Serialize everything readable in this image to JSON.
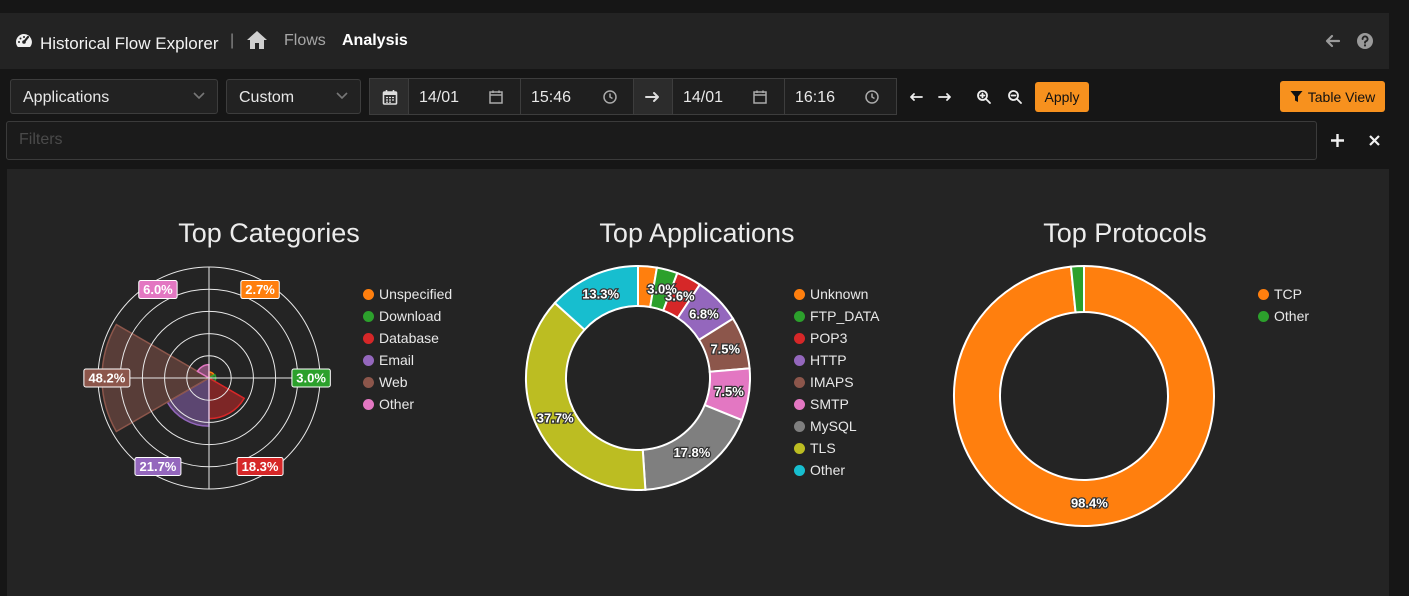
{
  "header": {
    "app_title": "Historical Flow Explorer",
    "separator": "|",
    "breadcrumbs": [
      {
        "label": "Flows"
      },
      {
        "label": "Analysis"
      }
    ]
  },
  "toolbar": {
    "view_select": "Applications",
    "range_select": "Custom",
    "start_date": "14/01",
    "start_time": "15:46",
    "end_date": "14/01",
    "end_time": "16:16",
    "apply_label": "Apply",
    "table_view_label": "Table View"
  },
  "filters": {
    "placeholder": "Filters"
  },
  "charts": {
    "categories": {
      "title": "Top Categories",
      "legend": [
        {
          "name": "Unspecified",
          "color": "#ff7f0e"
        },
        {
          "name": "Download",
          "color": "#2ca02c"
        },
        {
          "name": "Database",
          "color": "#d62728"
        },
        {
          "name": "Email",
          "color": "#9467bd"
        },
        {
          "name": "Web",
          "color": "#8c564b"
        },
        {
          "name": "Other",
          "color": "#e377c2"
        }
      ]
    },
    "applications": {
      "title": "Top Applications",
      "legend": [
        {
          "name": "Unknown",
          "color": "#ff7f0e"
        },
        {
          "name": "FTP_DATA",
          "color": "#2ca02c"
        },
        {
          "name": "POP3",
          "color": "#d62728"
        },
        {
          "name": "HTTP",
          "color": "#9467bd"
        },
        {
          "name": "IMAPS",
          "color": "#8c564b"
        },
        {
          "name": "SMTP",
          "color": "#e377c2"
        },
        {
          "name": "MySQL",
          "color": "#7f7f7f"
        },
        {
          "name": "TLS",
          "color": "#bcbd22"
        },
        {
          "name": "Other",
          "color": "#17becf"
        }
      ]
    },
    "protocols": {
      "title": "Top Protocols",
      "legend": [
        {
          "name": "TCP",
          "color": "#ff7f0e"
        },
        {
          "name": "Other",
          "color": "#2ca02c"
        }
      ]
    }
  },
  "chart_data": [
    {
      "type": "polar-area",
      "title": "Top Categories",
      "categories": [
        "Unspecified",
        "Download",
        "Database",
        "Email",
        "Web",
        "Other"
      ],
      "values": [
        2.7,
        3.0,
        18.3,
        21.7,
        48.2,
        6.0
      ],
      "labels": [
        "2.7%",
        "3.0%",
        "18.3%",
        "21.7%",
        "48.2%",
        "6.0%"
      ],
      "colors": [
        "#ff7f0e",
        "#2ca02c",
        "#d62728",
        "#9467bd",
        "#8c564b",
        "#e377c2"
      ]
    },
    {
      "type": "pie",
      "title": "Top Applications",
      "categories": [
        "Unknown",
        "FTP_DATA",
        "POP3",
        "HTTP",
        "IMAPS",
        "SMTP",
        "MySQL",
        "TLS",
        "Other"
      ],
      "values": [
        2.7,
        3.0,
        3.6,
        6.8,
        7.5,
        7.5,
        17.8,
        37.7,
        13.3
      ],
      "labels": [
        "",
        "3.0%",
        "3.6%",
        "6.8%",
        "7.5%",
        "7.5%",
        "17.8%",
        "37.7%",
        "13.3%"
      ],
      "colors": [
        "#ff7f0e",
        "#2ca02c",
        "#d62728",
        "#9467bd",
        "#8c564b",
        "#e377c2",
        "#7f7f7f",
        "#bcbd22",
        "#17becf"
      ]
    },
    {
      "type": "pie",
      "title": "Top Protocols",
      "categories": [
        "TCP",
        "Other"
      ],
      "values": [
        98.4,
        1.6
      ],
      "labels": [
        "98.4%",
        ""
      ],
      "colors": [
        "#ff7f0e",
        "#2ca02c"
      ]
    }
  ]
}
